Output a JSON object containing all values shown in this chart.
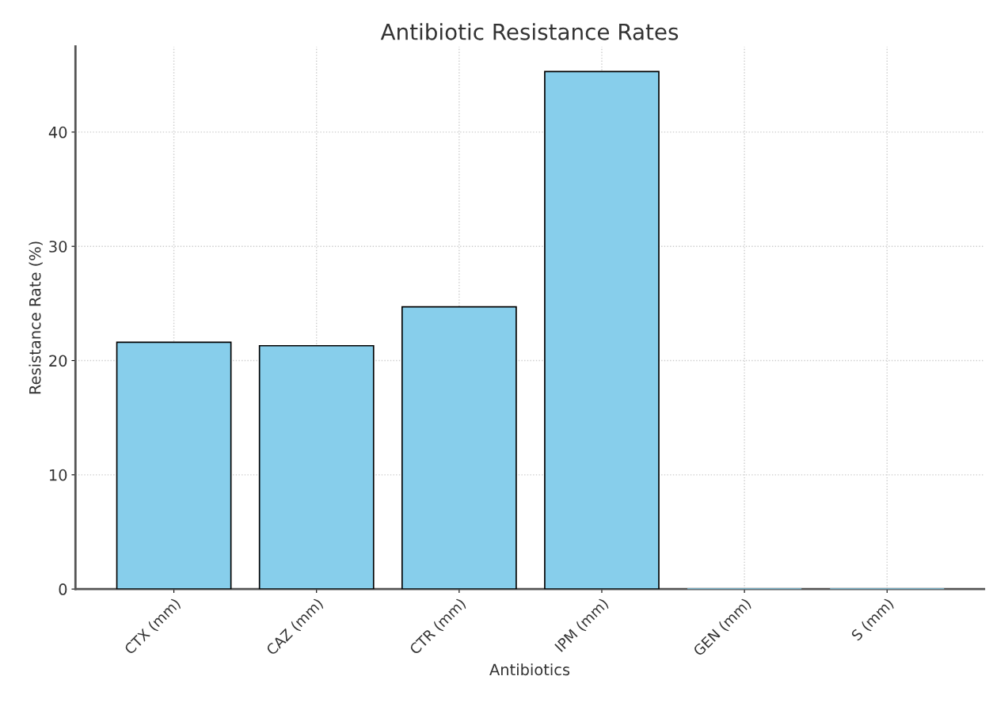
{
  "chart_data": {
    "type": "bar",
    "title": "Antibiotic Resistance Rates",
    "xlabel": "Antibiotics",
    "ylabel": "Resistance Rate (%)",
    "categories": [
      "CTX (mm)",
      "CAZ (mm)",
      "CTR (mm)",
      "IPM (mm)",
      "GEN (mm)",
      "S (mm)"
    ],
    "values": [
      21.6,
      21.3,
      24.7,
      45.3,
      0,
      0
    ],
    "color": "#87ceeb",
    "ylim": [
      0,
      47.5
    ],
    "yticks": [
      0,
      10,
      20,
      30,
      40
    ],
    "grid": true
  }
}
